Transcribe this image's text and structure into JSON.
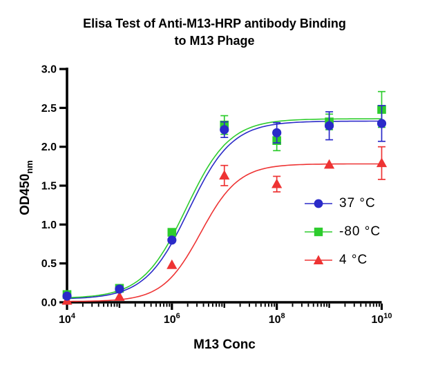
{
  "title": {
    "line1": "Elisa Test of Anti-M13-HRP antibody Binding",
    "line2": "to M13 Phage"
  },
  "chart_data": {
    "type": "scatter",
    "subtype": "dose-response with sigmoidal fit curves and error bars",
    "title": "Elisa Test of Anti-M13-HRP antibody Binding to M13 Phage",
    "xlabel": "M13 Conc",
    "ylabel": "OD450",
    "ylabel_subscript": "nm",
    "x_scale": "log10",
    "x_range_exponents": [
      4,
      10
    ],
    "x_major_tick_exponents": [
      4,
      6,
      8,
      10
    ],
    "x_tick_base": "10",
    "x_point_exponents": [
      4,
      5,
      6,
      7,
      8,
      9,
      10
    ],
    "y_ticks": [
      0.0,
      0.5,
      1.0,
      1.5,
      2.0,
      2.5,
      3.0
    ],
    "ylim": [
      0,
      3
    ],
    "grid": false,
    "axis_color": "#000000",
    "legend_position": "inside-right",
    "series": [
      {
        "name": "37 °C",
        "marker": "circle",
        "color": "#2a2ac8",
        "values": [
          0.08,
          0.17,
          0.8,
          2.22,
          2.18,
          2.27,
          2.3
        ],
        "errors": [
          0,
          0,
          0,
          0.1,
          0.13,
          0.18,
          0.23
        ],
        "fit": {
          "bottom": 0.04,
          "top": 2.33,
          "logEC50": 6.32,
          "hill": 1.05
        }
      },
      {
        "name": "-80 °C",
        "marker": "square",
        "color": "#2dcc2d",
        "values": [
          0.1,
          0.18,
          0.9,
          2.28,
          2.08,
          2.32,
          2.48
        ],
        "errors": [
          0,
          0,
          0,
          0.12,
          0.13,
          0.1,
          0.23
        ],
        "fit": {
          "bottom": 0.05,
          "top": 2.36,
          "logEC50": 6.27,
          "hill": 1.05
        }
      },
      {
        "name": "4 °C",
        "marker": "triangle",
        "color": "#ee3333",
        "values": [
          0.02,
          0.07,
          0.48,
          1.63,
          1.52,
          1.77,
          1.79
        ],
        "errors": [
          0,
          0,
          0,
          0.13,
          0.1,
          0,
          0.21
        ],
        "fit": {
          "bottom": 0.01,
          "top": 1.78,
          "logEC50": 6.55,
          "hill": 1.2
        }
      }
    ]
  }
}
